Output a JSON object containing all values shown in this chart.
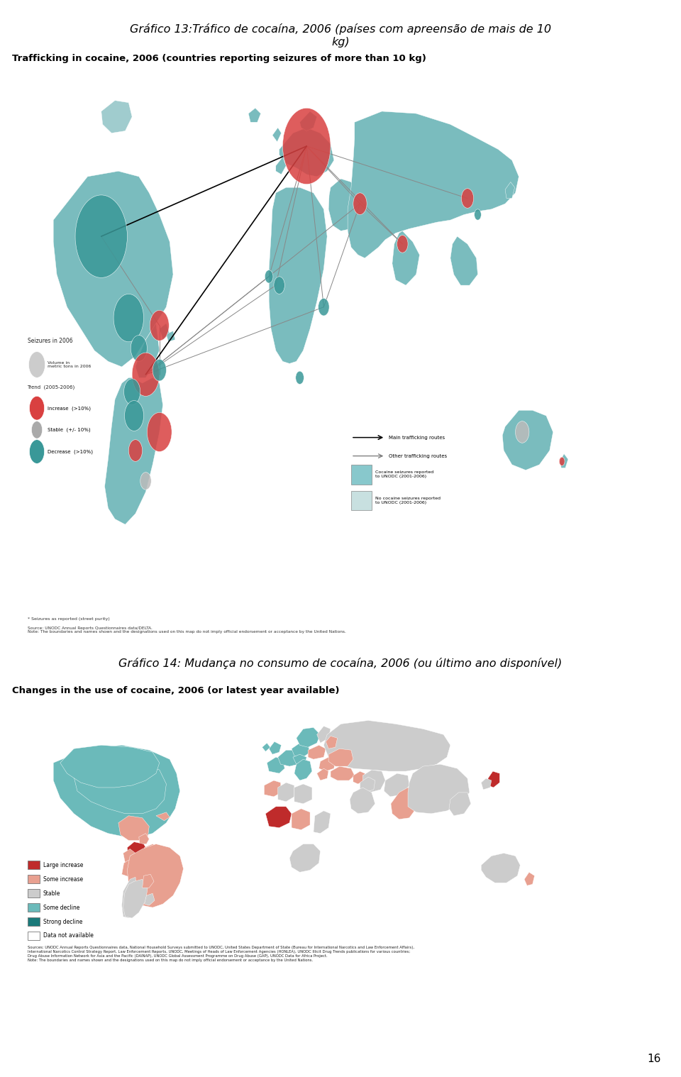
{
  "title1": "Gráfico 13:Tráfico de cocaína, 2006 (países com apreensão de mais de 10\nkg)",
  "subtitle1": "Trafficking in cocaine, 2006 (countries reporting seizures of more than 10 kg)",
  "title2": "Gráfico 14: Mudança no consumo de cocaína, 2006 (ou último ano disponível)",
  "subtitle2": "Changes in the use of cocaine, 2006 (or latest year available)",
  "page_number": "16",
  "bg_color": "#ffffff",
  "map1_bg": "#c8e6f0",
  "map2_bg": "#daeef5",
  "map_border_color": "#bbbbbb",
  "title_fontsize": 11.5,
  "subtitle_fontsize": 9.5,
  "page_fontsize": 11,
  "note_fontsize": 5.5,
  "source_fontsize": 5.0,
  "legend1_items": [
    "Volume in\nmetric tons in 2006",
    "Trend  (2005-2006)",
    "Increase  (>10%)",
    "Stable  (+/- 10%)",
    "Decrease  (>10%)"
  ],
  "legend2_items": [
    "Large increase",
    "Some increase",
    "Stable",
    "Some decline",
    "Strong decline",
    "Data not available"
  ],
  "legend2_colors": [
    "#bf2b2b",
    "#e8a090",
    "#cccccc",
    "#6bbaba",
    "#1a7a7a",
    "#ffffff"
  ],
  "seizures_title": "Seizures in 2006",
  "source1": "Source: UNODC Annual Reports Questionnaires data/DELTA.\nNote: The boundaries and names shown and the designations used on this map do not imply official endorsement or acceptance by the United Nations.",
  "footnote1": "* Seizures as reported (street purity)",
  "source2": "Sources: UNODC Annual Reports Questionnaires data, National Household Surveys submitted to UNODC, United States Department of State (Bureau for International Narcotics and Law Enforcement Affairs),\nInternational Narcotics Control Strategy Report, Law Enforcement Reports, UNODC, Meetings of Heads of Law Enforcement Agencies (HONLEA), UNODC Illicit Drug Trends publications for various countries;\nDrug Abuse Information Network for Asia and the Pacific (DAINAP), UNODC Global Assessment Programme on Drug Abuse (GAP), UNODC Data for Africa Project.\nNote: The boundaries and names shown and the designations used on this map do not imply official endorsement or acceptance by the United Nations.",
  "map1_legend_arrow1": "Main trafficking routes",
  "map1_legend_arrow2": "Other trafficking routes",
  "map1_legend_box1": "Cocaine seizures reported\nto UNODC (2001-2006)",
  "map1_legend_box2": "No cocaine seizures reported\nto UNODC (2001-2006)",
  "map1_box1_color": "#88c8cc",
  "map1_box2_color": "#c8e0e0"
}
